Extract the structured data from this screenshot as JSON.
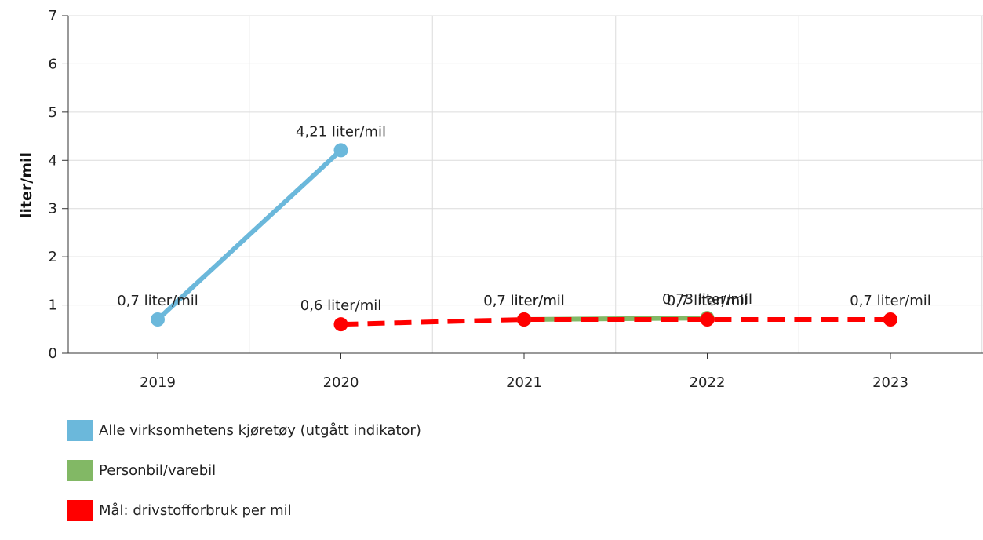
{
  "chart_data": {
    "type": "line",
    "ylabel": "liter/mil",
    "xlabel": "",
    "categories": [
      "2019",
      "2020",
      "2021",
      "2022",
      "2023"
    ],
    "ylim": [
      0,
      7
    ],
    "yticks": [
      0,
      1,
      2,
      3,
      4,
      5,
      6,
      7
    ],
    "grid": true,
    "legend_position": "bottom-left",
    "series": [
      {
        "name": "Alle virksomhetens kjøretøy (utgått indikator)",
        "color": "#6bb8db",
        "style": "solid",
        "points": [
          {
            "x": "2019",
            "y": 0.7,
            "label": "0,7 liter/mil"
          },
          {
            "x": "2020",
            "y": 4.21,
            "label": "4,21 liter/mil"
          }
        ]
      },
      {
        "name": "Personbil/varebil",
        "color": "#82b865",
        "style": "solid",
        "points": [
          {
            "x": "2021",
            "y": 0.7,
            "label": "0,7 liter/mil"
          },
          {
            "x": "2022",
            "y": 0.73,
            "label": "0,73 liter/mil"
          }
        ]
      },
      {
        "name": "Mål: drivstofforbruk per mil",
        "color": "#ff0000",
        "style": "dashed",
        "points": [
          {
            "x": "2020",
            "y": 0.6,
            "label": "0,6 liter/mil"
          },
          {
            "x": "2021",
            "y": 0.7,
            "label": "0,7 liter/mil"
          },
          {
            "x": "2022",
            "y": 0.7,
            "label": "0,7 liter/mil"
          },
          {
            "x": "2023",
            "y": 0.7,
            "label": "0,7 liter/mil"
          }
        ]
      }
    ]
  }
}
